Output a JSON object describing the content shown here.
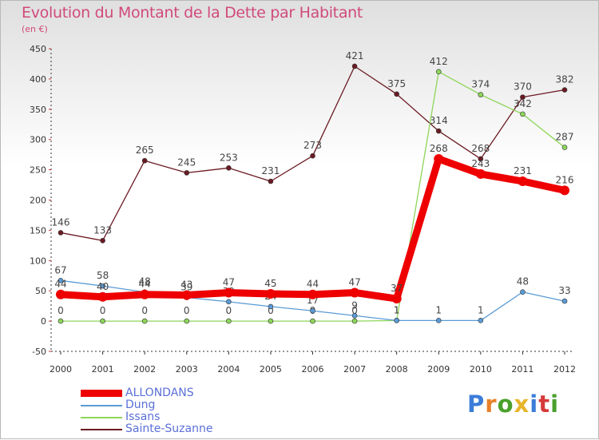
{
  "title": "Evolution du Montant de la Dette par Habitant",
  "unit_label": "(en €)",
  "logo": {
    "letters": [
      "P",
      "r",
      "o",
      "x",
      "i",
      "t",
      "i"
    ],
    "colors": [
      "#3b7dd8",
      "#e8812a",
      "#4aa02c",
      "#e8b42a",
      "#3b7dd8",
      "#d63a3a",
      "#4aa02c"
    ]
  },
  "chart_data": {
    "type": "line",
    "x": [
      "2000",
      "2001",
      "2002",
      "2003",
      "2004",
      "2005",
      "2006",
      "2007",
      "2008",
      "2009",
      "2010",
      "2011",
      "2012"
    ],
    "ylim": [
      -50,
      450
    ],
    "yticks": [
      "-50",
      "0",
      "50",
      "100",
      "150",
      "200",
      "250",
      "300",
      "350",
      "400",
      "450"
    ],
    "grid": false,
    "legend_position": "bottom-left",
    "series": [
      {
        "name": "Sainte-Suzanne",
        "color": "#6b1a22",
        "values": [
          146,
          133,
          265,
          245,
          253,
          231,
          273,
          421,
          375,
          314,
          268,
          370,
          382
        ],
        "labels": [
          "146",
          "133",
          "265",
          "245",
          "253",
          "231",
          "273",
          "421",
          "375",
          "314",
          "268",
          "370",
          "382"
        ]
      },
      {
        "name": "Issans",
        "color": "#8ed65a",
        "values": [
          0,
          0,
          0,
          0,
          0,
          0,
          0,
          0,
          1,
          412,
          374,
          342,
          287
        ],
        "labels": [
          "0",
          "0",
          "0",
          "0",
          "0",
          "0",
          "0",
          "0",
          "1",
          "412",
          "374",
          "342",
          "287"
        ]
      },
      {
        "name": "Dung",
        "color": "#5b9bd5",
        "values": [
          67,
          58,
          48,
          39,
          32,
          24,
          17,
          9,
          1,
          1,
          1,
          48,
          33
        ],
        "labels": [
          "67",
          "58",
          "48",
          "39",
          "32",
          "24",
          "17",
          "9",
          "1",
          "1",
          "1",
          "48",
          "33"
        ]
      },
      {
        "name": "ALLONDANS",
        "color": "#ee0000",
        "values": [
          44,
          40,
          44,
          43,
          47,
          45,
          44,
          47,
          37,
          268,
          243,
          231,
          216
        ],
        "labels": [
          "44",
          "40",
          "44",
          "43",
          "47",
          "45",
          "44",
          "47",
          "37",
          "268",
          "243",
          "231",
          "216"
        ]
      }
    ]
  },
  "legend": [
    {
      "name": "ALLONDANS",
      "color": "#ee0000",
      "width": 9
    },
    {
      "name": "Dung",
      "color": "#5b9bd5",
      "width": 1.5
    },
    {
      "name": "Issans",
      "color": "#8ed65a",
      "width": 1.5
    },
    {
      "name": "Sainte-Suzanne",
      "color": "#6b1a22",
      "width": 1.5
    }
  ]
}
